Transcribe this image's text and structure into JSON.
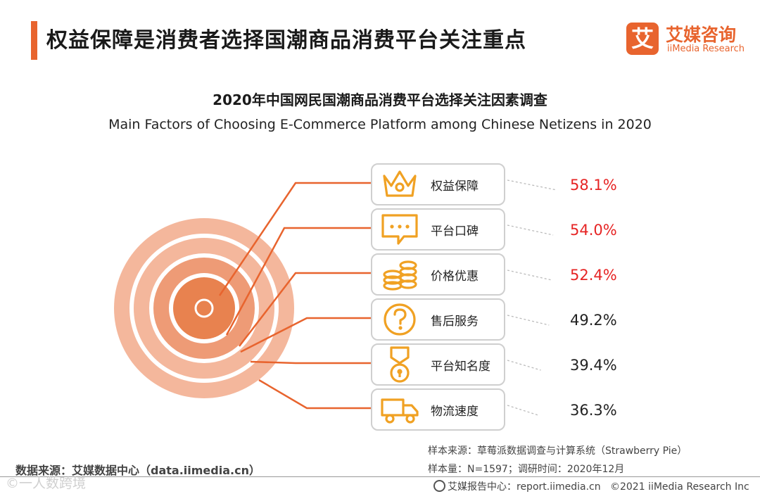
{
  "header": {
    "title": "权益保障是消费者选择国潮商品消费平台关注重点",
    "logo_mark": "艾",
    "logo_cn": "艾媒咨询",
    "logo_en": "iiMedia Research"
  },
  "chart_data": {
    "type": "bar",
    "title": "2020年中国网民国潮商品消费平台选择关注因素调查",
    "subtitle": "Main Factors of Choosing E-Commerce Platform among Chinese Netizens in 2020",
    "unit": "%",
    "categories": [
      "权益保障",
      "平台口碑",
      "价格优惠",
      "售后服务",
      "平台知名度",
      "物流速度"
    ],
    "values": [
      58.1,
      54.0,
      52.4,
      49.2,
      39.4,
      36.3
    ],
    "labels": [
      "58.1%",
      "54.0%",
      "52.4%",
      "49.2%",
      "39.4%",
      "36.3%"
    ],
    "icons": [
      "crown-icon",
      "chat-bubble-icon",
      "coins-icon",
      "question-icon",
      "medal-icon",
      "truck-icon"
    ],
    "highlight_count": 3
  },
  "colors": {
    "accent": "#e8642e",
    "icon": "#f0a123",
    "highlight_value": "#e62424",
    "normal_value": "#222222",
    "ring_outer": "#f4b79c",
    "ring_mid": "#ee9b76",
    "ring_inner": "#e8824f"
  },
  "footer": {
    "data_source": "数据来源：艾媒数据中心（data.iimedia.cn）",
    "sample_source": "样本来源：草莓派数据调查与计算系统（Strawberry Pie）",
    "sample_size": "样本量：N=1597；调研时间：2020年12月",
    "copyright_site": "艾媒报告中心：report.iimedia.cn",
    "copyright": "©2021  iiMedia Research  Inc",
    "watermark": "©一人数跨境"
  }
}
